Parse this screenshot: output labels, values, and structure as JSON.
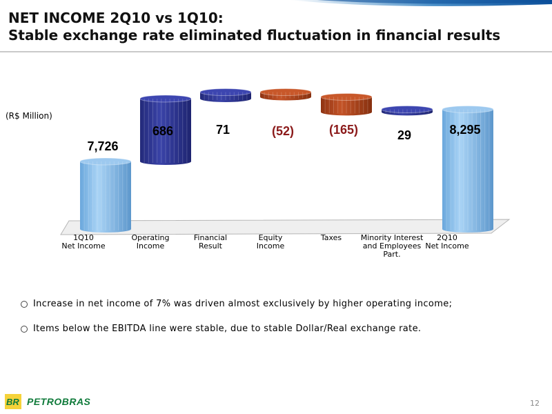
{
  "header": {
    "title_line1": "NET INCOME 2Q10 vs 1Q10:",
    "title_line2": "Stable exchange rate eliminated fluctuation in financial results"
  },
  "unit_label": "(R$ Million)",
  "bullets": [
    "Increase in net income of 7% was driven almost exclusively by higher operating income;",
    "Items below the EBITDA line were stable, due to stable Dollar/Real exchange rate."
  ],
  "footer": {
    "brand_mark": "BR",
    "brand_name": "PETROBRAS",
    "page_number": "12"
  },
  "colors": {
    "total_bar": "#8ec2ee",
    "positive_bar": "#2e3590",
    "negative_bar": "#b5461e",
    "positive_label": "#000000",
    "negative_label": "#8b1a1a",
    "brand_green": "#0f7a3a",
    "brand_yellow": "#f5d23a"
  },
  "chart_data": {
    "type": "bar",
    "subtype": "waterfall",
    "categories": [
      "1Q10\nNet Income",
      "Operating\nIncome",
      "Financial\nResult",
      "Equity\nIncome",
      "Taxes",
      "Minority Interest\nand Employees\nPart.",
      "2Q10\nNet Income"
    ],
    "values": [
      7726,
      686,
      71,
      -52,
      -165,
      29,
      8295
    ],
    "kinds": [
      "total",
      "delta",
      "delta",
      "delta",
      "delta",
      "delta",
      "total"
    ],
    "data_labels": [
      "7,726",
      "686",
      "71",
      "(52)",
      "(165)",
      "29",
      "8,295"
    ],
    "ylabel": "(R$ Million)",
    "grid": false,
    "legend": "none"
  }
}
